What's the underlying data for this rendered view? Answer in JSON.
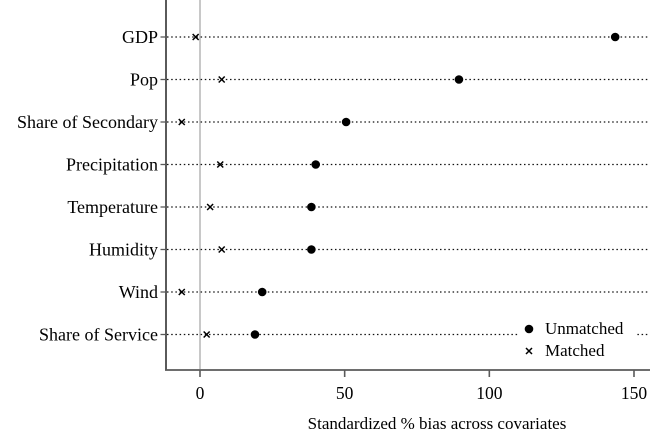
{
  "chart_data": {
    "type": "scatter",
    "subtype": "dot-plot-covariate-balance",
    "title": "",
    "xlabel": "Standardized % bias across covariates",
    "ylabel": "",
    "categories": [
      "GDP",
      "Pop",
      "Share of Secondary",
      "Precipitation",
      "Temperature",
      "Humidity",
      "Wind",
      "Share of Service"
    ],
    "series": [
      {
        "name": "Unmatched",
        "marker": "filled-circle",
        "values": [
          143.5,
          89.5,
          50.5,
          40,
          38.5,
          38.5,
          21.5,
          19
        ]
      },
      {
        "name": "Matched",
        "marker": "x-cross",
        "values": [
          -1.5,
          7.5,
          -6.3,
          7,
          3.5,
          7.5,
          -6.3,
          2.3
        ]
      }
    ],
    "xticks": [
      0,
      50,
      100,
      150
    ],
    "xlim": [
      -12,
      156
    ],
    "zero_reference_line": 0,
    "grid": "dotted horizontal leader line per category",
    "legend_position": "inside bottom-right",
    "colors": {
      "marker": "#000000",
      "axis": "#5a5a5a",
      "zero_line": "#c8c8c8",
      "leader_dots": "#111111",
      "text": "#000000",
      "background": "#ffffff"
    }
  }
}
